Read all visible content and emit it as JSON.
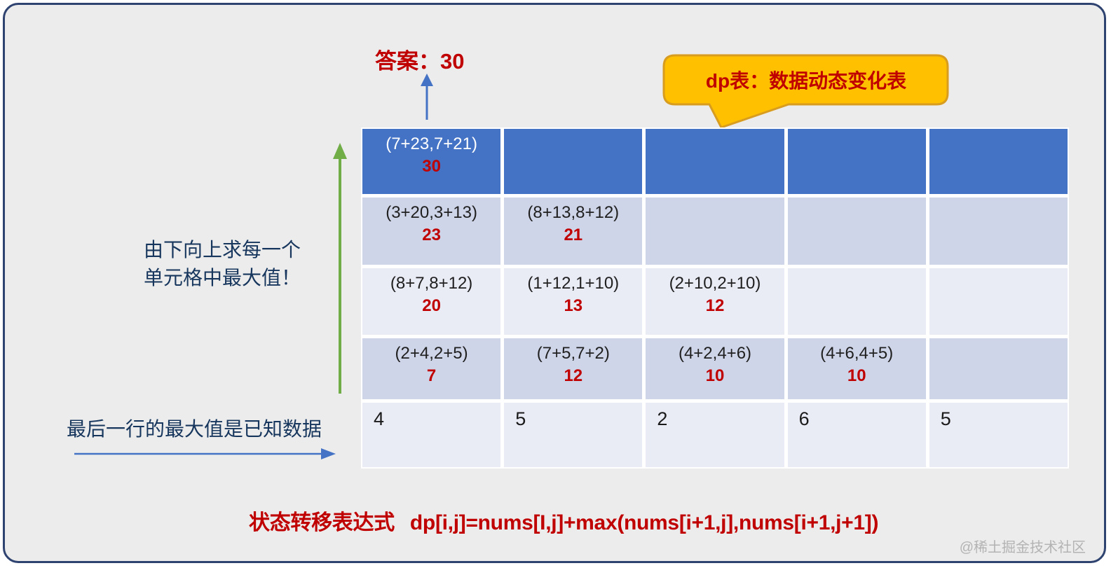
{
  "answer": {
    "label": "答案：30"
  },
  "callout": {
    "text": "dp表：数据动态变化表"
  },
  "notes": {
    "left_line1": "由下向上求每一个",
    "left_line2": "单元格中最大值！",
    "bottom": "最后一行的最大值是已知数据"
  },
  "formula": {
    "label": "状态转移表达式",
    "expression": "dp[i,j]=nums[I,j]+max(nums[i+1,j],nums[i+1,j+1])"
  },
  "watermark": "@稀土掘金技术社区",
  "colors": {
    "header_blue": "#4472C4",
    "band_dark": "#CFD5E8",
    "band_light": "#E9EBF5",
    "accent_red": "#C00000",
    "navy_text": "#17365D",
    "green_arrow": "#70AD47",
    "blue_arrow": "#4472C4",
    "callout_fill": "#FFC000",
    "callout_border": "#D89C1E",
    "slide_bg": "#ECECEC",
    "slide_border": "#2E4370"
  },
  "table": {
    "rows": [
      {
        "band": "header",
        "cells": [
          {
            "expr": "(7+23,7+21)",
            "val": "30"
          },
          null,
          null,
          null,
          null
        ]
      },
      {
        "band": "dark",
        "cells": [
          {
            "expr": "(3+20,3+13)",
            "val": "23"
          },
          {
            "expr": "(8+13,8+12)",
            "val": "21"
          },
          null,
          null,
          null
        ]
      },
      {
        "band": "light",
        "cells": [
          {
            "expr": "(8+7,8+12)",
            "val": "20"
          },
          {
            "expr": "(1+12,1+10)",
            "val": "13"
          },
          {
            "expr": "(2+10,2+10)",
            "val": "12"
          },
          null,
          null
        ]
      },
      {
        "band": "dark",
        "cells": [
          {
            "expr": "(2+4,2+5)",
            "val": "7"
          },
          {
            "expr": "(7+5,7+2)",
            "val": "12"
          },
          {
            "expr": "(4+2,4+6)",
            "val": "10"
          },
          {
            "expr": "(4+6,4+5)",
            "val": "10"
          },
          null
        ]
      },
      {
        "band": "light",
        "cells": [
          {
            "num": "4"
          },
          {
            "num": "5"
          },
          {
            "num": "2"
          },
          {
            "num": "6"
          },
          {
            "num": "5"
          }
        ]
      }
    ]
  }
}
